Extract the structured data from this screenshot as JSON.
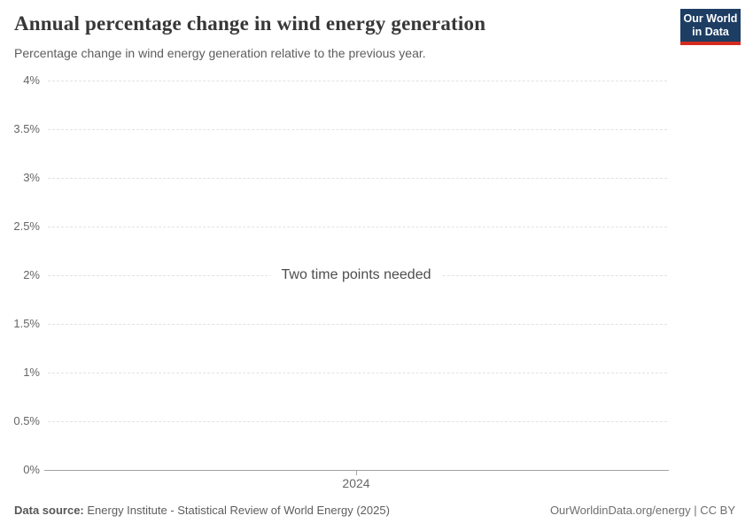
{
  "header": {
    "title": "Annual percentage change in wind energy generation",
    "subtitle": "Percentage change in wind energy generation relative to the previous year.",
    "logo": {
      "line1": "Our World",
      "line2": "in Data"
    }
  },
  "chart_data": {
    "type": "line",
    "title": "Annual percentage change in wind energy generation",
    "subtitle": "Percentage change in wind energy generation relative to the previous year.",
    "series": [],
    "empty_message": "Two time points needed",
    "x_ticks": [
      "2024"
    ],
    "y_ticks": [
      "4%",
      "3.5%",
      "3%",
      "2.5%",
      "2%",
      "1.5%",
      "1%",
      "0.5%",
      "0%"
    ],
    "ylim_percent": [
      0,
      4
    ],
    "grid": "horizontal-dashed",
    "legend": "none"
  },
  "footer": {
    "source_label": "Data source:",
    "source_text": "Energy Institute - Statistical Review of World Energy (2025)",
    "rights": "OurWorldinData.org/energy | CC BY"
  },
  "colors": {
    "logo_bg": "#1d3d63",
    "logo_accent": "#d42b21",
    "title_text": "#373737",
    "muted_text": "#5d5d5d",
    "tick_text": "#666666",
    "gridline": "#e2e2e2",
    "axis_line": "#a1a1a1",
    "background": "#ffffff"
  }
}
